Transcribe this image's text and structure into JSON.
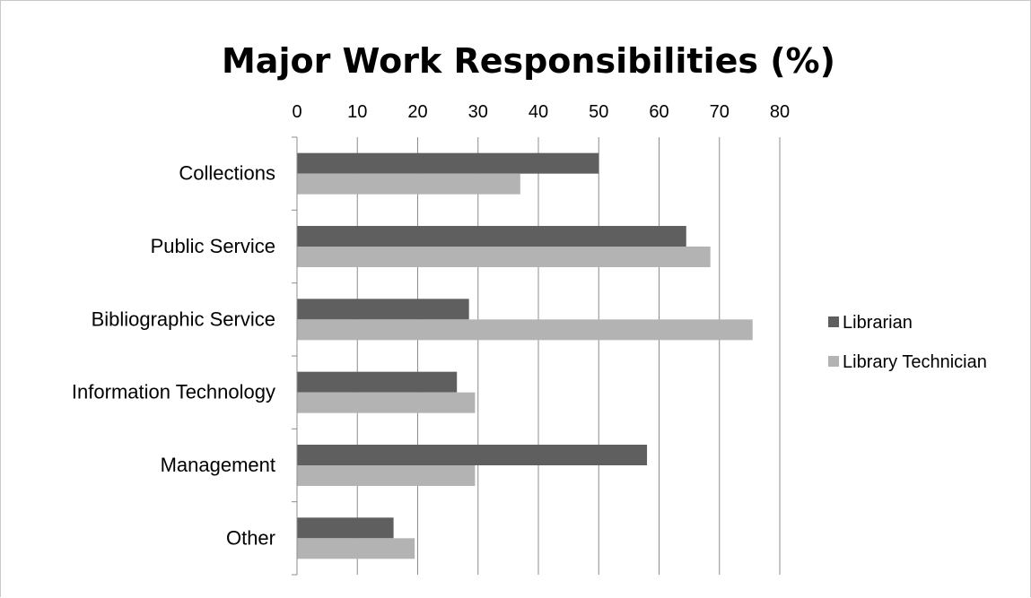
{
  "chart_data": {
    "type": "bar",
    "orientation": "horizontal",
    "title": "Major Work Responsibilities (%)",
    "xlabel": "",
    "ylabel": "",
    "categories": [
      "Collections",
      "Public Service",
      "Bibliographic Service",
      "Information Technology",
      "Management",
      "Other"
    ],
    "series": [
      {
        "name": "Librarian",
        "color": "#5f5f5f",
        "values": [
          50,
          64.5,
          28.5,
          26.5,
          58,
          16
        ]
      },
      {
        "name": "Library Technician",
        "color": "#b3b3b3",
        "values": [
          37,
          68.5,
          75.5,
          29.5,
          29.5,
          19.5
        ]
      }
    ],
    "xlim": [
      0,
      80
    ],
    "xticks": [
      "0",
      "10",
      "20",
      "30",
      "40",
      "50",
      "60",
      "70",
      "80"
    ],
    "tick_position": "top",
    "grid": true,
    "legend": "right"
  }
}
